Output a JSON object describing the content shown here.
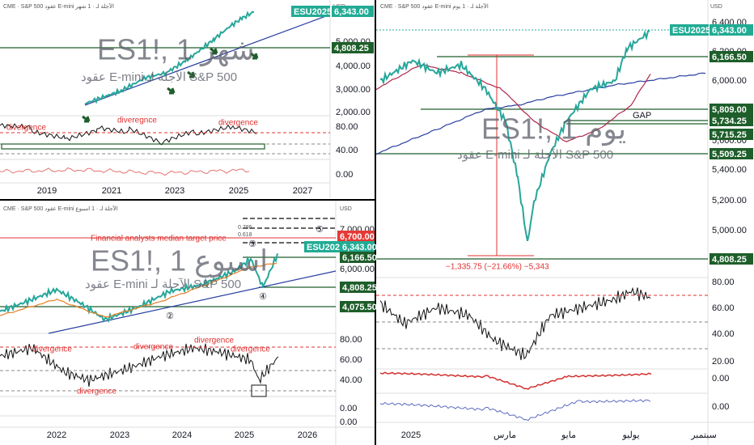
{
  "panels": [
    {
      "symbol": "ES1!, 1 شهر",
      "description": "عقود E-mini الآجلة لـ S&P 500",
      "header": "CME · S&P 500 عقود E-mini الآجلة لـ · 1 شهر",
      "currency": "USD",
      "price_labels": [
        "5,000.00",
        "4,000.00",
        "3,000.00",
        "2,000.00"
      ],
      "oscillator_labels": [
        "80.00",
        "40.00"
      ],
      "macd_labels": [
        "0.00"
      ],
      "price_tags": [
        "ESU2025",
        "6,343.00",
        "4,808.25"
      ],
      "time_labels": [
        "2019",
        "2021",
        "2023",
        "2025",
        "2027"
      ],
      "annotations": [
        "divergence",
        "diveregnce",
        "divergence"
      ]
    },
    {
      "symbol": "ES1!, 1 يوم",
      "description": "عقود E-mini الآجلة لـ S&P 500",
      "header": "CME · S&P 500 عقود E-mini الآجلة لـ · 1 يوم",
      "currency": "USD",
      "price_labels": [
        "6,400.00",
        "6,200.00",
        "6,000.00",
        "5,600.00",
        "5,400.00",
        "5,200.00",
        "5,000.00"
      ],
      "oscillator_labels": [
        "80.00",
        "60.00",
        "40.00",
        "20.00"
      ],
      "macd_labels": [
        "0.00",
        "0.00"
      ],
      "price_tags": [
        "ESU2025",
        "6,343.00",
        "6,166.50",
        "5,809.00",
        "5,734.25",
        "5,715.25",
        "5,509.25",
        "4,808.25"
      ],
      "time_labels": [
        "2025",
        "مارس",
        "مايو",
        "يوليو",
        "سبتمبر"
      ],
      "annotations": [
        "GAP",
        "−1,335.75 (−21.66%) −5,343"
      ]
    },
    {
      "symbol": "ES1!, 1 اسبوع",
      "description": "عقود E-mini الآجلة لـ S&P 500",
      "header": "CME · S&P 500 عقود E-mini الآجلة لـ · 1 اسبوع",
      "currency": "USD",
      "price_labels": [
        "7,000.00",
        "6,000.00",
        "5,000.00"
      ],
      "oscillator_labels": [
        "80.00",
        "60.00",
        "40.00"
      ],
      "macd_labels": [
        "0.00",
        "0.00"
      ],
      "price_tags": [
        "6,700.00",
        "ESU2025",
        "6,343.00",
        "6,166.50",
        "4,808.25",
        "4,075.50"
      ],
      "time_labels": [
        "2022",
        "2023",
        "2024",
        "2025",
        "2026"
      ],
      "annotations": [
        "Financial analysts median target price",
        "divergence",
        "divergence",
        "divergence",
        "divergence",
        "divergence",
        "0.786",
        "0.618",
        "②",
        "③",
        "④",
        "⑤"
      ]
    }
  ]
}
